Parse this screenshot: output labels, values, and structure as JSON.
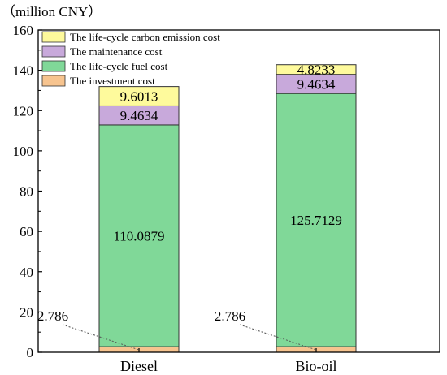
{
  "chart_data": {
    "type": "bar",
    "stacked": true,
    "unit_label": "（million CNY）",
    "categories": [
      "Diesel",
      "Bio-oil"
    ],
    "ylim": [
      0,
      160
    ],
    "yticks": [
      "0",
      "20",
      "40",
      "60",
      "80",
      "100",
      "120",
      "140",
      "160"
    ],
    "legend_position": "top-left",
    "series": [
      {
        "name": "The investment cost",
        "values": [
          2.786,
          2.786
        ],
        "labels": [
          "2.786",
          "2.786"
        ],
        "color": "#f7c48f"
      },
      {
        "name": "The life-cycle fuel cost",
        "values": [
          110.0879,
          125.7129
        ],
        "labels": [
          "110.0879",
          "125.7129"
        ],
        "color": "#80d898"
      },
      {
        "name": "The maintenance cost",
        "values": [
          9.4634,
          9.4634
        ],
        "labels": [
          "9.4634",
          "9.4634"
        ],
        "color": "#c8a9db"
      },
      {
        "name": "The life-cycle carbon emission cost",
        "values": [
          9.6013,
          4.8233
        ],
        "labels": [
          "9.6013",
          "4.8233"
        ],
        "color": "#fefa9c"
      }
    ]
  }
}
